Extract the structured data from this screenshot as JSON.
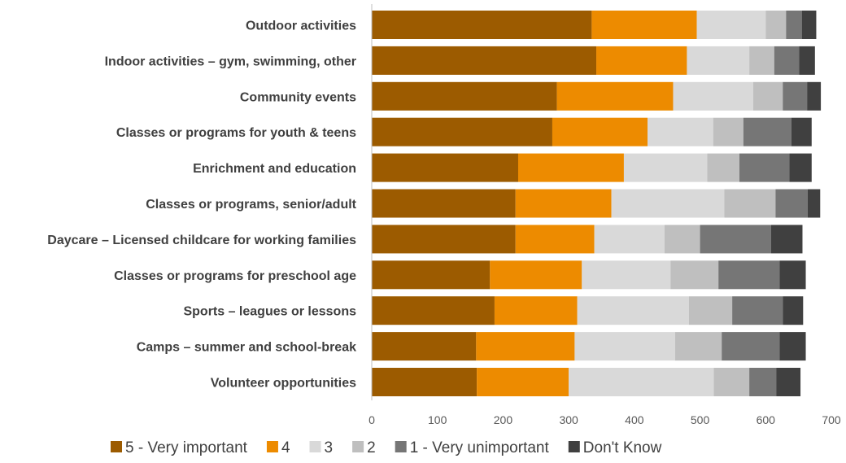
{
  "chart_data": {
    "type": "bar",
    "orientation": "horizontal",
    "stacked": true,
    "categories": [
      "Outdoor activities",
      "Indoor activities – gym, swimming, other",
      "Community events",
      "Classes or programs for youth & teens",
      "Enrichment and education",
      "Classes or programs, senior/adult",
      "Daycare – Licensed childcare for working families",
      "Classes or programs for preschool age",
      "Sports – leagues or lessons",
      "Camps – summer and school-break",
      "Volunteer opportunities"
    ],
    "series": [
      {
        "name": "5 - Very important",
        "color": "#9C5B00",
        "values": [
          335,
          342,
          282,
          275,
          223,
          219,
          219,
          180,
          187,
          159,
          160
        ]
      },
      {
        "name": "4",
        "color": "#ED8B00",
        "values": [
          160,
          138,
          177,
          145,
          161,
          146,
          120,
          140,
          126,
          150,
          140
        ]
      },
      {
        "name": "3",
        "color": "#D9D9D9",
        "values": [
          105,
          95,
          122,
          100,
          127,
          172,
          107,
          135,
          170,
          153,
          221
        ]
      },
      {
        "name": "2",
        "color": "#BFBFBF",
        "values": [
          31,
          38,
          45,
          46,
          49,
          78,
          54,
          73,
          66,
          71,
          54
        ]
      },
      {
        "name": "1 - Very unimportant",
        "color": "#767676",
        "values": [
          24,
          38,
          37,
          73,
          76,
          49,
          108,
          93,
          77,
          88,
          41
        ]
      },
      {
        "name": "Don't Know",
        "color": "#404040",
        "values": [
          22,
          24,
          21,
          31,
          34,
          19,
          48,
          40,
          31,
          40,
          37
        ]
      }
    ],
    "xlim": [
      0,
      700
    ],
    "xticks": [
      "0",
      "100",
      "200",
      "300",
      "400",
      "500",
      "600",
      "700"
    ],
    "grid": false,
    "legend_position": "bottom"
  }
}
